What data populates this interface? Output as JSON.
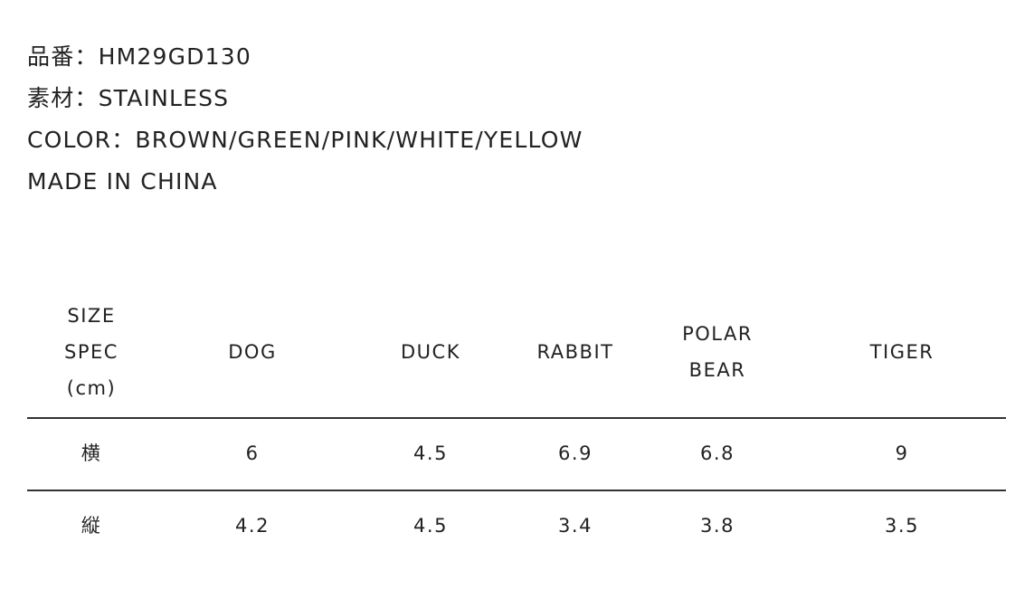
{
  "info": [
    "品番：HM29GD130",
    "素材：STAINLESS",
    "COLOR：BROWN/GREEN/PINK/WHITE/YELLOW",
    "MADE IN CHINA"
  ],
  "table": {
    "header": [
      [
        "SIZE",
        "SPEC",
        "(cm)"
      ],
      [
        "DOG"
      ],
      [
        "DUCK"
      ],
      [
        "RABBIT"
      ],
      [
        "POLAR",
        "BEAR"
      ],
      [
        "TIGER"
      ]
    ],
    "rows": [
      [
        "横",
        6,
        4.5,
        6.9,
        6.8,
        9
      ],
      [
        "縦",
        4.2,
        4.5,
        3.4,
        3.8,
        3.5
      ]
    ]
  }
}
